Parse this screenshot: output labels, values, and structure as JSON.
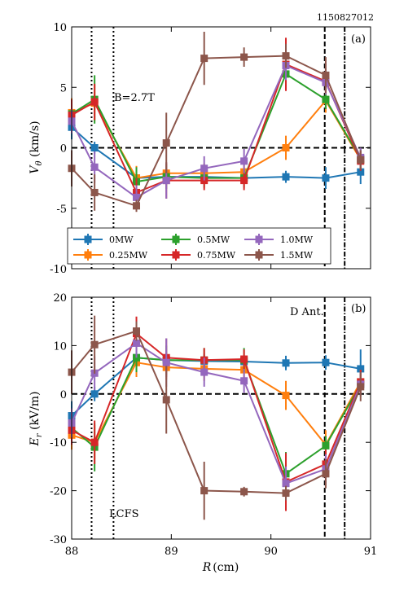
{
  "figure": {
    "shot_id": "1150827012",
    "xlabel_main": "R",
    "xlabel_unit": "(cm)"
  },
  "chart_data": [
    {
      "type": "line",
      "panel": "(a)",
      "ylabel": "V_θ (km/s)",
      "ylabel_main": "V",
      "ylabel_sub": "θ",
      "ylabel_unit": " (km/s)",
      "annotation": "B=2.7T",
      "xlim": [
        88,
        91
      ],
      "ylim": [
        -10,
        10
      ],
      "xticks": [
        88,
        89,
        90,
        91
      ],
      "yticks": [
        -10,
        -5,
        0,
        5,
        10
      ],
      "zero_line": true,
      "x": [
        88.0,
        88.23,
        88.65,
        88.95,
        89.33,
        89.73,
        90.15,
        90.55,
        90.9
      ],
      "legend_position": "lower-left",
      "series": [
        {
          "name": "0MW",
          "color": "#1f77b4",
          "values": [
            1.7,
            0.0,
            -2.5,
            -2.4,
            -2.4,
            -2.5,
            -2.4,
            -2.5,
            -2.0
          ],
          "errors": [
            1.0,
            0.5,
            0.5,
            0.5,
            0.5,
            0.5,
            0.5,
            0.9,
            1.0
          ]
        },
        {
          "name": "0.25MW",
          "color": "#ff7f0e",
          "values": [
            2.9,
            3.7,
            -2.5,
            -2.1,
            -2.1,
            -2.0,
            0.0,
            3.9,
            -1.0
          ],
          "errors": [
            1.2,
            1.5,
            1.0,
            0.8,
            0.8,
            0.8,
            1.0,
            1.0,
            0.8
          ]
        },
        {
          "name": "0.5MW",
          "color": "#2ca02c",
          "values": [
            2.8,
            4.0,
            -2.8,
            -2.4,
            -2.5,
            -2.5,
            6.1,
            4.0,
            -0.9
          ],
          "errors": [
            1.0,
            2.0,
            1.2,
            1.0,
            0.8,
            0.8,
            1.2,
            0.8,
            0.8
          ]
        },
        {
          "name": "0.75MW",
          "color": "#d62728",
          "values": [
            2.7,
            3.8,
            -3.7,
            -2.7,
            -2.7,
            -2.7,
            6.9,
            5.5,
            -1.1
          ],
          "errors": [
            1.3,
            1.5,
            1.2,
            1.5,
            0.8,
            0.8,
            2.2,
            1.0,
            0.8
          ]
        },
        {
          "name": "1.0MW",
          "color": "#9467bd",
          "values": [
            2.2,
            -1.6,
            -4.1,
            -2.7,
            -1.7,
            -1.1,
            6.8,
            5.4,
            -0.8
          ],
          "errors": [
            1.0,
            1.3,
            1.0,
            1.5,
            1.0,
            1.0,
            1.2,
            1.0,
            0.8
          ]
        },
        {
          "name": "1.5MW",
          "color": "#8c564b",
          "values": [
            -1.7,
            -3.7,
            -4.8,
            0.4,
            7.4,
            7.5,
            7.6,
            6.0,
            -1.0
          ],
          "errors": [
            1.5,
            1.5,
            0.5,
            2.5,
            2.2,
            0.8,
            1.0,
            1.5,
            0.8
          ]
        }
      ]
    },
    {
      "type": "line",
      "panel": "(b)",
      "ylabel": "E_r (kV/m)",
      "ylabel_main": "E",
      "ylabel_sub": "r",
      "ylabel_unit": " (kV/m)",
      "annotation_top": "D Ant.",
      "annotation_bottom": "LCFS",
      "xlim": [
        88,
        91
      ],
      "ylim": [
        -30,
        20
      ],
      "xticks": [
        88,
        89,
        90,
        91
      ],
      "yticks": [
        -30,
        -20,
        -10,
        0,
        10,
        20
      ],
      "zero_line": true,
      "x": [
        88.0,
        88.23,
        88.65,
        88.95,
        89.33,
        89.73,
        90.15,
        90.55,
        90.9
      ],
      "series": [
        {
          "name": "0MW",
          "color": "#1f77b4",
          "values": [
            -4.5,
            0.0,
            7.5,
            7.0,
            6.8,
            6.7,
            6.4,
            6.5,
            5.2
          ],
          "errors": [
            3.0,
            1.5,
            2.0,
            1.5,
            1.5,
            1.0,
            1.5,
            1.5,
            4.0
          ]
        },
        {
          "name": "0.25MW",
          "color": "#ff7f0e",
          "values": [
            -8.5,
            -10.0,
            6.5,
            5.5,
            5.2,
            5.0,
            -0.3,
            -10.5,
            2.5
          ],
          "errors": [
            3.0,
            3.5,
            3.0,
            2.5,
            2.5,
            2.5,
            3.0,
            3.0,
            2.5
          ]
        },
        {
          "name": "0.5MW",
          "color": "#2ca02c",
          "values": [
            -7.0,
            -11.0,
            7.5,
            7.0,
            7.0,
            7.0,
            -16.5,
            -10.7,
            2.0
          ],
          "errors": [
            3.0,
            5.0,
            3.0,
            3.0,
            2.5,
            2.5,
            4.5,
            2.0,
            2.5
          ]
        },
        {
          "name": "0.75MW",
          "color": "#d62728",
          "values": [
            -7.5,
            -10.0,
            12.5,
            7.5,
            7.0,
            7.2,
            -18.2,
            -14.5,
            2.5
          ],
          "errors": [
            3.0,
            4.5,
            3.5,
            4.0,
            2.5,
            2.0,
            6.0,
            3.0,
            2.5
          ]
        },
        {
          "name": "1.0MW",
          "color": "#9467bd",
          "values": [
            -6.0,
            4.3,
            10.5,
            6.5,
            4.5,
            2.7,
            -18.5,
            -15.5,
            2.0
          ],
          "errors": [
            3.0,
            3.5,
            3.0,
            5.0,
            3.0,
            2.5,
            3.5,
            3.0,
            2.5
          ]
        },
        {
          "name": "1.5MW",
          "color": "#8c564b",
          "values": [
            4.5,
            10.2,
            13.0,
            -1.2,
            -20.0,
            -20.2,
            -20.5,
            -16.5,
            1.5
          ],
          "errors": [
            4.5,
            6.0,
            2.0,
            7.0,
            6.0,
            1.0,
            1.5,
            3.0,
            3.0
          ]
        }
      ]
    }
  ]
}
